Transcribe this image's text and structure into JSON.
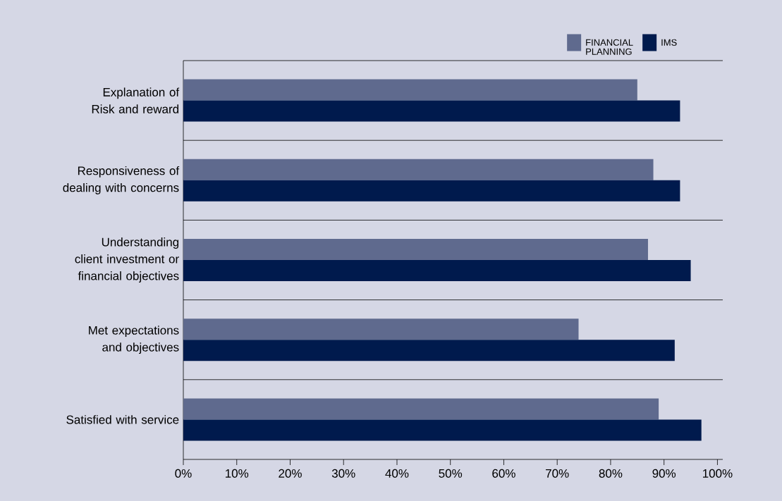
{
  "chart_data": {
    "type": "bar",
    "orientation": "horizontal",
    "categories": [
      "Explanation of Risk and reward",
      "Responsiveness of dealing with concerns",
      "Understanding client investment or financial objectives",
      "Met expectations and objectives",
      "Satisfied with service"
    ],
    "series": [
      {
        "name": "FINANCIAL PLANNING",
        "color": "#5f6a8e",
        "values": [
          85,
          88,
          87,
          74,
          89
        ]
      },
      {
        "name": "IMS",
        "color": "#001a4d",
        "values": [
          93,
          93,
          95,
          92,
          97
        ]
      }
    ],
    "xlim": [
      0,
      101
    ],
    "xticks": [
      {
        "value": 0,
        "label": "0%"
      },
      {
        "value": 10,
        "label": "10%"
      },
      {
        "value": 20,
        "label": "20%"
      },
      {
        "value": 30,
        "label": "30%"
      },
      {
        "value": 40,
        "label": "40%"
      },
      {
        "value": 50,
        "label": "50%"
      },
      {
        "value": 60,
        "label": "60%"
      },
      {
        "value": 70,
        "label": "70%"
      },
      {
        "value": 80,
        "label": "80%"
      },
      {
        "value": 90,
        "label": "90%"
      },
      {
        "value": 100,
        "label": "100%"
      }
    ],
    "grid": "y",
    "legend": "top right"
  }
}
